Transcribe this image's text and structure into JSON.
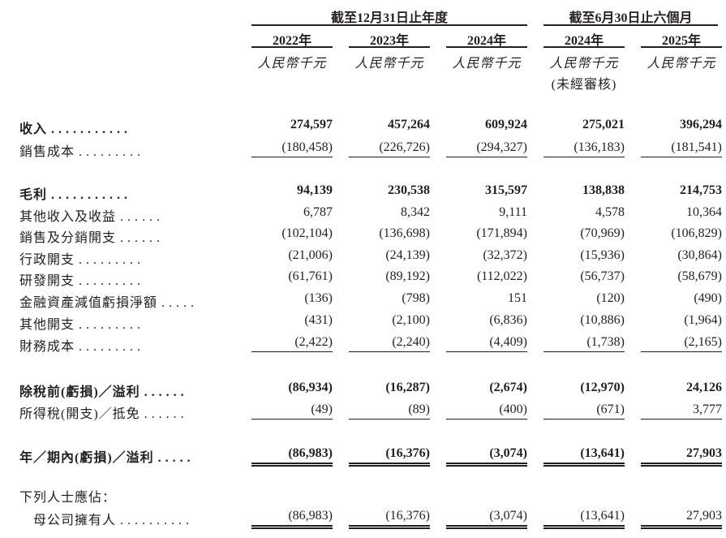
{
  "header": {
    "group1": "截至12月31日止年度",
    "group2": "截至6月30日止六個月",
    "columns": [
      {
        "year": "2022年",
        "unit": "人民幣千元"
      },
      {
        "year": "2023年",
        "unit": "人民幣千元"
      },
      {
        "year": "2024年",
        "unit": "人民幣千元"
      },
      {
        "year": "2024年",
        "unit": "人民幣千元",
        "note": "(未經審核)"
      },
      {
        "year": "2025年",
        "unit": "人民幣千元"
      }
    ]
  },
  "rows": [
    {
      "label": "收入",
      "dots": "...........",
      "bold": true,
      "values": [
        "274,597",
        "457,264",
        "609,924",
        "275,021",
        "396,294"
      ]
    },
    {
      "label": "銷售成本",
      "dots": ".........",
      "values": [
        "(180,458)",
        "(226,726)",
        "(294,327)",
        "(136,183)",
        "(181,541)"
      ],
      "rule": "single"
    },
    {
      "label": "毛利",
      "dots": "...........",
      "bold": true,
      "values": [
        "94,139",
        "230,538",
        "315,597",
        "138,838",
        "214,753"
      ]
    },
    {
      "label": "其他收入及收益",
      "dots": "......",
      "values": [
        "6,787",
        "8,342",
        "9,111",
        "4,578",
        "10,364"
      ]
    },
    {
      "label": "銷售及分銷開支",
      "dots": "......",
      "values": [
        "(102,104)",
        "(136,698)",
        "(171,894)",
        "(70,969)",
        "(106,829)"
      ]
    },
    {
      "label": "行政開支",
      "dots": ".........",
      "values": [
        "(21,006)",
        "(24,139)",
        "(32,372)",
        "(15,936)",
        "(30,864)"
      ]
    },
    {
      "label": "研發開支",
      "dots": ".........",
      "values": [
        "(61,761)",
        "(89,192)",
        "(112,022)",
        "(56,737)",
        "(58,679)"
      ]
    },
    {
      "label": "金融資產減值虧損淨額",
      "dots": ".....",
      "values": [
        "(136)",
        "(798)",
        "151",
        "(120)",
        "(490)"
      ]
    },
    {
      "label": "其他開支",
      "dots": ".........",
      "values": [
        "(431)",
        "(2,100)",
        "(6,836)",
        "(10,886)",
        "(1,964)"
      ]
    },
    {
      "label": "財務成本",
      "dots": ".........",
      "values": [
        "(2,422)",
        "(2,240)",
        "(4,409)",
        "(1,738)",
        "(2,165)"
      ],
      "rule": "single"
    },
    {
      "label": "除稅前(虧損)／溢利",
      "dots": "......",
      "bold": true,
      "values": [
        "(86,934)",
        "(16,287)",
        "(2,674)",
        "(12,970)",
        "24,126"
      ]
    },
    {
      "label": "所得稅(開支)／抵免",
      "dots": "......",
      "values": [
        "(49)",
        "(89)",
        "(400)",
        "(671)",
        "3,777"
      ],
      "rule": "single"
    },
    {
      "label": "年／期內(虧損)／溢利",
      "dots": ".....",
      "bold": true,
      "values": [
        "(86,983)",
        "(16,376)",
        "(3,074)",
        "(13,641)",
        "27,903"
      ],
      "rule": "double"
    },
    {
      "label": "下列人士應佔：",
      "dots": "",
      "values": []
    },
    {
      "label": "　母公司擁有人",
      "dots": "..........",
      "values": [
        "(86,983)",
        "(16,376)",
        "(3,074)",
        "(13,641)",
        "27,903"
      ],
      "rule": "double"
    }
  ]
}
